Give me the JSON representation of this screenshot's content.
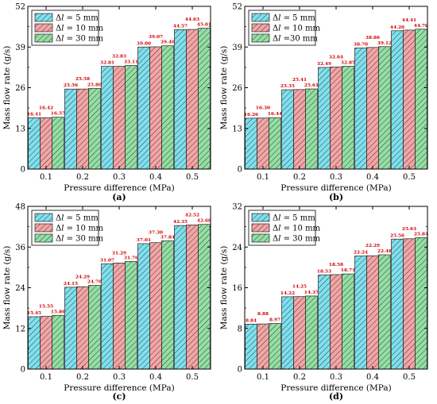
{
  "figure": {
    "colors": {
      "dl5": "#7fe0ee",
      "dl10": "#f4a5a5",
      "dl30": "#93dfa4",
      "value_label": "#cc0000"
    },
    "legend_style": {
      "delta_symbol": "Δ",
      "variable": "l"
    },
    "hatch": "diagonal lines"
  },
  "chart_data": [
    {
      "type": "bar",
      "panel": "(a)",
      "xlabel": "Pressure difference (MPa)",
      "ylabel": "Mass flow rate (g/s)",
      "categories": [
        "0.1",
        "0.2",
        "0.3",
        "0.4",
        "0.5"
      ],
      "ylim": [
        0,
        52
      ],
      "yticks": [
        "0",
        "13",
        "26",
        "39",
        "52"
      ],
      "legend": "top-left",
      "series": [
        {
          "name": " = 5 mm",
          "values": [
            16.41,
            25.56,
            32.81,
            39.0,
            44.57
          ],
          "labels": [
            "16.41",
            "25.56",
            "32.81",
            "39.00",
            "44.57"
          ]
        },
        {
          "name": " = 10 mm",
          "values": [
            16.42,
            25.58,
            32.83,
            39.07,
            44.63
          ],
          "labels": [
            "16.42",
            "25.58",
            "32.83",
            "39.07",
            "44.63"
          ]
        },
        {
          "name": " = 30 mm",
          "values": [
            16.57,
            25.8,
            33.11,
            39.4,
            45.01
          ],
          "labels": [
            "16.57",
            "25.80",
            "33.11",
            "39.40",
            "45.01"
          ]
        }
      ]
    },
    {
      "type": "bar",
      "panel": "(b)",
      "xlabel": "Pressure difference (MPa)",
      "ylabel": "Mass flow rate (g/s)",
      "categories": [
        "0.1",
        "0.2",
        "0.3",
        "0.4",
        "0.5"
      ],
      "ylim": [
        0,
        52
      ],
      "yticks": [
        "0",
        "13",
        "26",
        "39",
        "52"
      ],
      "legend": "top-left",
      "series": [
        {
          "name": " = 5 mm",
          "values": [
            16.26,
            25.35,
            32.49,
            38.7,
            44.2
          ],
          "labels": [
            "16.26",
            "25.35",
            "32.49",
            "38.70",
            "44.20"
          ]
        },
        {
          "name": " = 10 mm",
          "values": [
            16.3,
            25.41,
            32.64,
            38.86,
            44.41
          ],
          "labels": [
            "16.30",
            "25.41",
            "32.64",
            "38.86",
            "44.41"
          ]
        },
        {
          "name": " =30 mm",
          "values": [
            16.44,
            25.61,
            32.85,
            39.12,
            44.7
          ],
          "labels": [
            "16.44",
            "25.61",
            "32.85",
            "39.12",
            "44.70"
          ]
        }
      ]
    },
    {
      "type": "bar",
      "panel": "(c)",
      "xlabel": "Pressure difference (MPa)",
      "ylabel": "Mass flow rate (g/s)",
      "categories": [
        "0.1",
        "0.2",
        "0.3",
        "0.4",
        "0.5"
      ],
      "ylim": [
        0,
        48
      ],
      "yticks": [
        "0",
        "12",
        "24",
        "36",
        "48"
      ],
      "legend": "top-left",
      "series": [
        {
          "name": " = 5 mm",
          "values": [
            15.45,
            24.15,
            31.07,
            37.01,
            42.35
          ],
          "labels": [
            "15.45",
            "24.15",
            "31.07",
            "37.01",
            "42.35"
          ]
        },
        {
          "name": " = 10 mm",
          "values": [
            15.55,
            24.29,
            31.29,
            37.3,
            42.52
          ],
          "labels": [
            "15.55",
            "24.29",
            "31.29",
            "37.30",
            "42.52"
          ]
        },
        {
          "name": " = 30 mm",
          "values": [
            15.86,
            24.7,
            31.76,
            37.84,
            42.68
          ],
          "labels": [
            "15.86",
            "24.70",
            "31.76",
            "37.84",
            "42.68"
          ]
        }
      ]
    },
    {
      "type": "bar",
      "panel": "(d)",
      "xlabel": "Pressure difference (MPa)",
      "ylabel": "Mass flow rate (g/s)",
      "categories": [
        "0.1",
        "0.2",
        "0.3",
        "0.4",
        "0.5"
      ],
      "ylim": [
        0,
        32
      ],
      "yticks": [
        "0",
        "8",
        "16",
        "24",
        "32"
      ],
      "legend": "top-left",
      "series": [
        {
          "name": " = 5 mm",
          "values": [
            8.84,
            14.22,
            18.53,
            22.24,
            25.56
          ],
          "labels": [
            "8.84",
            "14.22",
            "18.53",
            "22.24",
            "25.56"
          ]
        },
        {
          "name": " = 10 mm",
          "values": [
            8.88,
            14.25,
            18.58,
            22.29,
            25.63
          ],
          "labels": [
            "8.88",
            "14.25",
            "18.58",
            "22.29",
            "25.63"
          ]
        },
        {
          "name": " = 30 mm",
          "values": [
            8.97,
            14.37,
            18.71,
            22.48,
            25.84
          ],
          "labels": [
            "8.97",
            "14.37",
            "18.71",
            "22.48",
            "25.84"
          ]
        }
      ]
    }
  ]
}
